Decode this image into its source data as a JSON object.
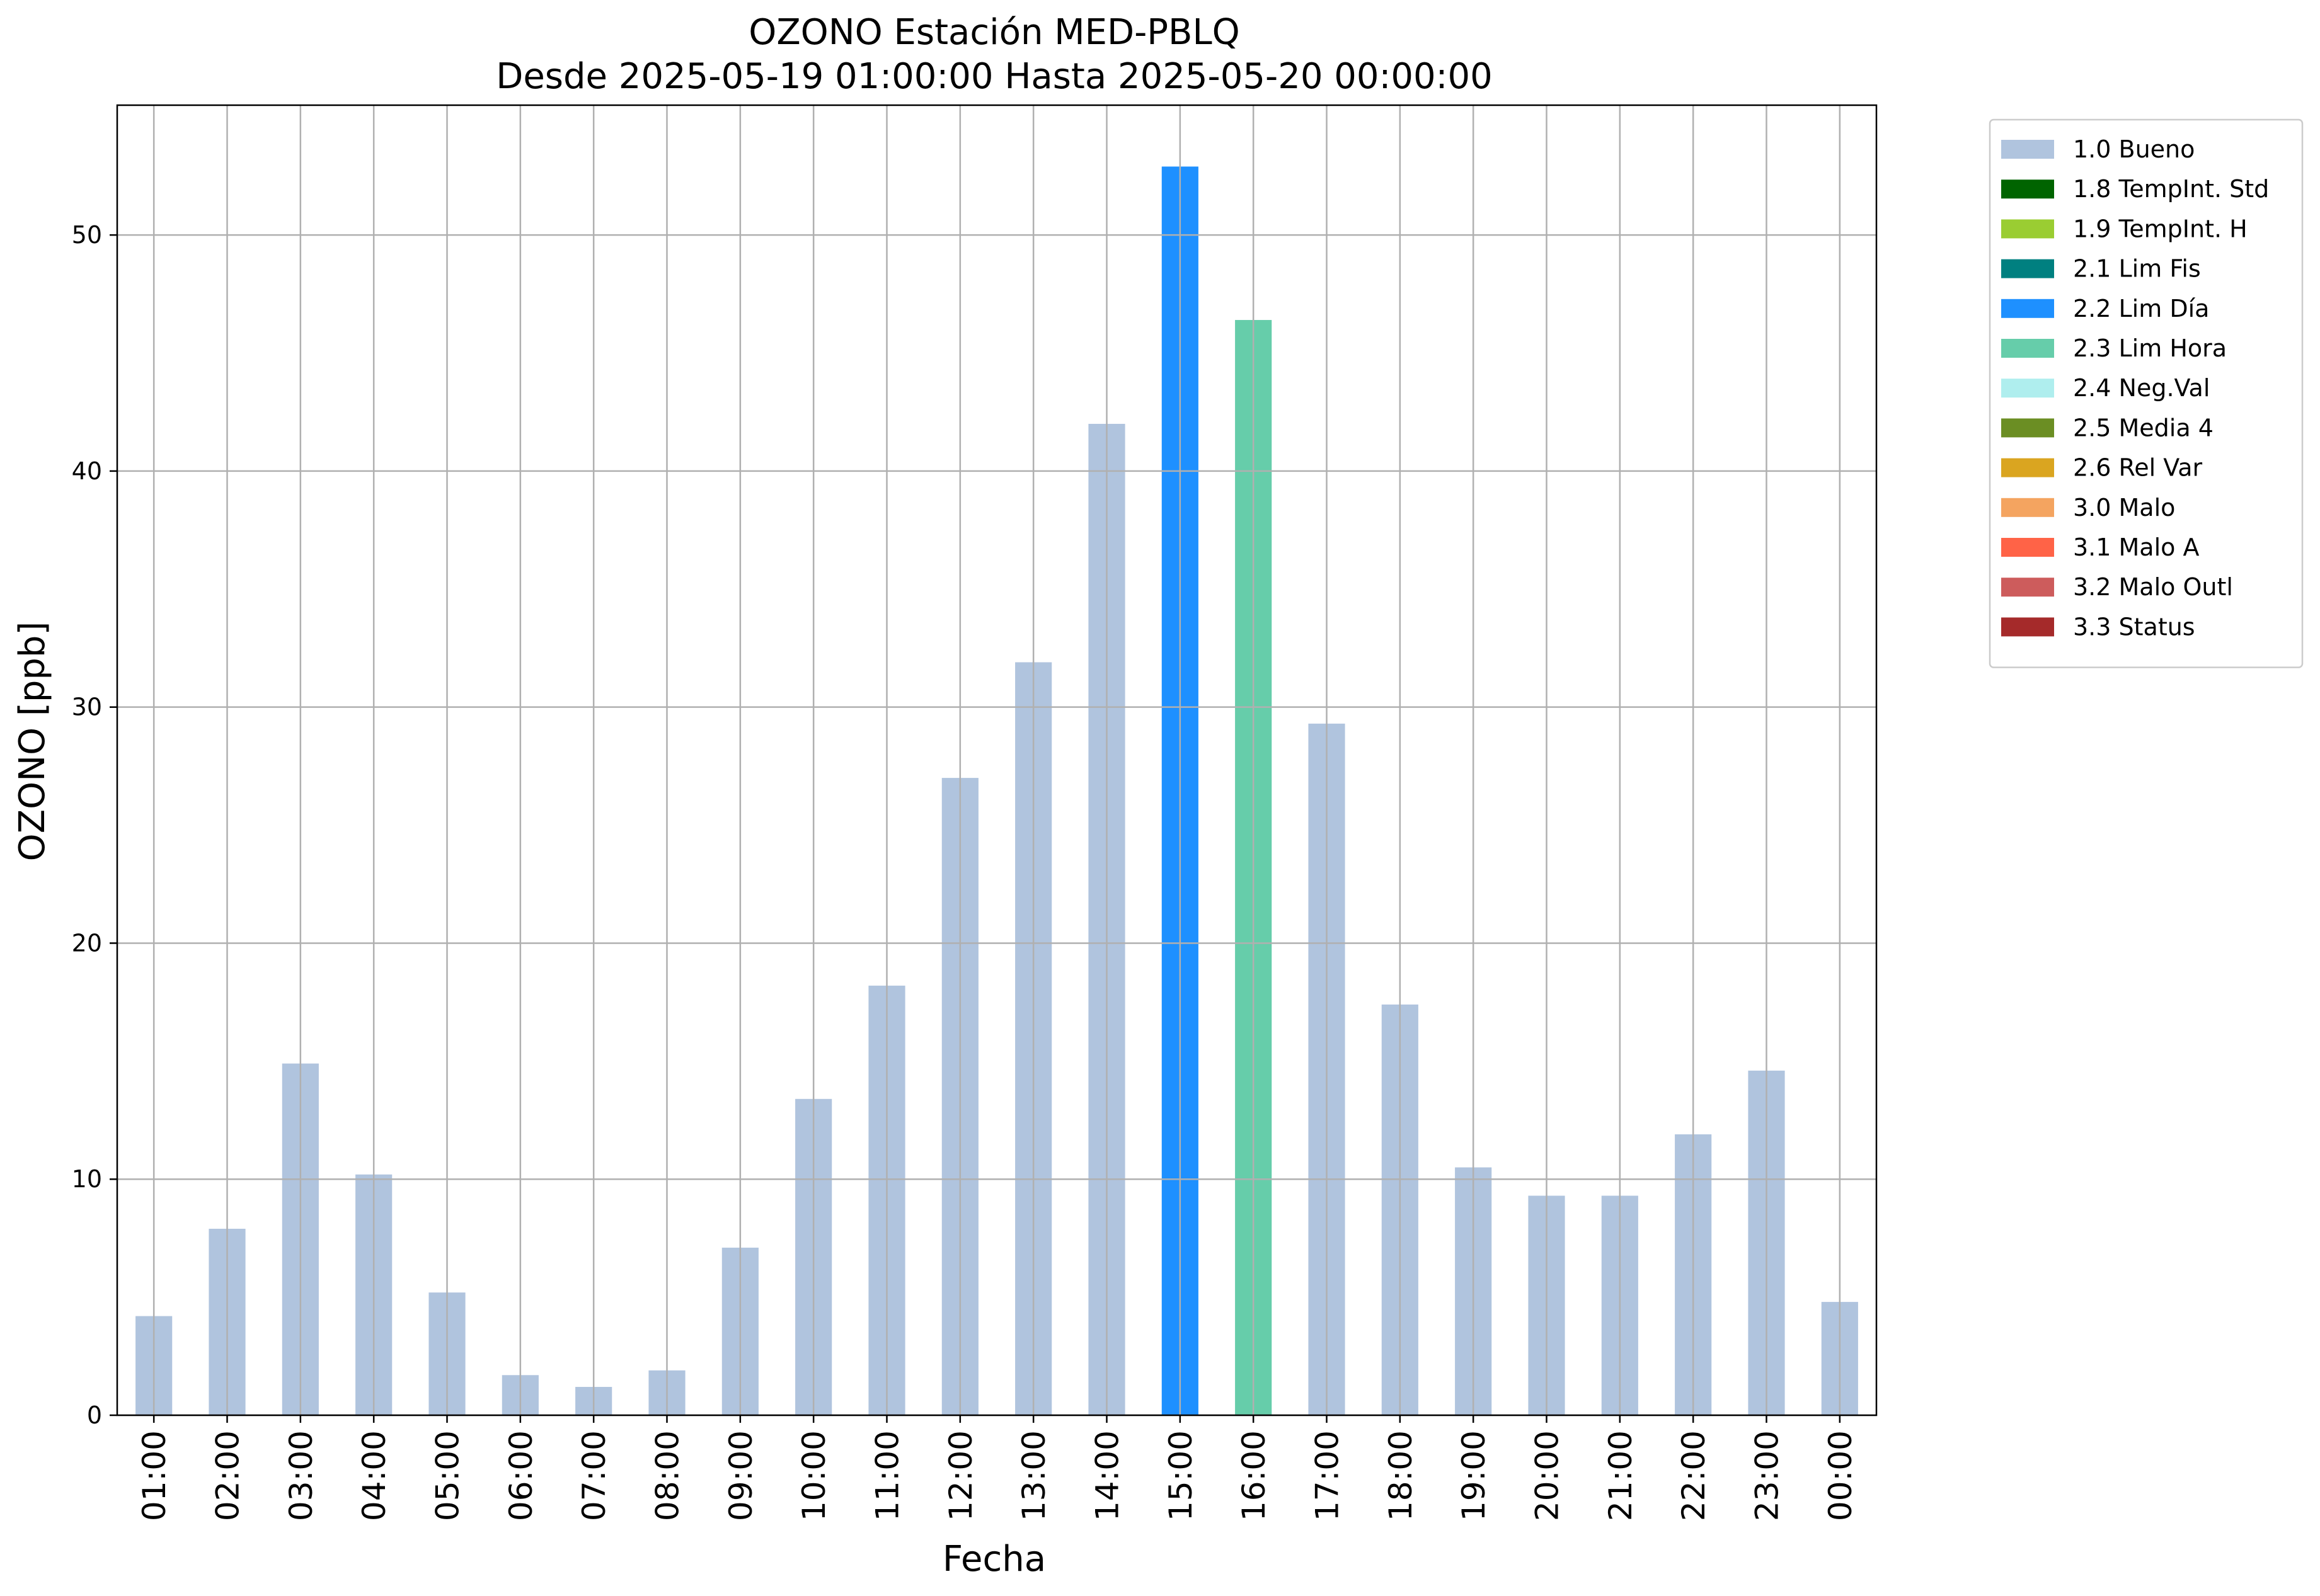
{
  "chart_data": {
    "type": "bar",
    "title": "OZONO Estación MED-PBLQ",
    "subtitle": "Desde 2025-05-19 01:00:00 Hasta 2025-05-20 00:00:00",
    "xlabel": "Fecha",
    "ylabel": "OZONO [ppb]",
    "ylim": [
      0,
      55.5
    ],
    "yticks": [
      0,
      10,
      20,
      30,
      40,
      50
    ],
    "grid": true,
    "legend_position": "outside-top-right",
    "categories": [
      "01:00",
      "02:00",
      "03:00",
      "04:00",
      "05:00",
      "06:00",
      "07:00",
      "08:00",
      "09:00",
      "10:00",
      "11:00",
      "12:00",
      "13:00",
      "14:00",
      "15:00",
      "16:00",
      "17:00",
      "18:00",
      "19:00",
      "20:00",
      "21:00",
      "22:00",
      "23:00",
      "00:00"
    ],
    "values": [
      4.2,
      7.9,
      14.9,
      10.2,
      5.2,
      1.7,
      1.2,
      1.9,
      7.1,
      13.4,
      18.2,
      27.0,
      31.9,
      42.0,
      52.9,
      46.4,
      29.3,
      17.4,
      10.5,
      9.3,
      9.3,
      11.9,
      14.6,
      4.8
    ],
    "flags": [
      "1.0 Bueno",
      "1.0 Bueno",
      "1.0 Bueno",
      "1.0 Bueno",
      "1.0 Bueno",
      "1.0 Bueno",
      "1.0 Bueno",
      "1.0 Bueno",
      "1.0 Bueno",
      "1.0 Bueno",
      "1.0 Bueno",
      "1.0 Bueno",
      "1.0 Bueno",
      "1.0 Bueno",
      "2.2 Lim Día",
      "2.3 Lim Hora",
      "1.0 Bueno",
      "1.0 Bueno",
      "1.0 Bueno",
      "1.0 Bueno",
      "1.0 Bueno",
      "1.0 Bueno",
      "1.0 Bueno",
      "1.0 Bueno"
    ],
    "legend": [
      {
        "label": "1.0 Bueno",
        "color": "#b0c4de"
      },
      {
        "label": "1.8 TempInt. Std",
        "color": "#006400"
      },
      {
        "label": "1.9 TempInt. H",
        "color": "#9acd32"
      },
      {
        "label": "2.1 Lim Fis",
        "color": "#008080"
      },
      {
        "label": "2.2 Lim Día",
        "color": "#1e90ff"
      },
      {
        "label": "2.3 Lim Hora",
        "color": "#66cdaa"
      },
      {
        "label": "2.4 Neg.Val",
        "color": "#afeeee"
      },
      {
        "label": "2.5 Media 4",
        "color": "#6b8e23"
      },
      {
        "label": "2.6 Rel Var",
        "color": "#daa520"
      },
      {
        "label": "3.0 Malo",
        "color": "#f4a460"
      },
      {
        "label": "3.1 Malo A",
        "color": "#ff6347"
      },
      {
        "label": "3.2 Malo Outl",
        "color": "#cd5c5c"
      },
      {
        "label": "3.3 Status",
        "color": "#a52a2a"
      }
    ]
  }
}
